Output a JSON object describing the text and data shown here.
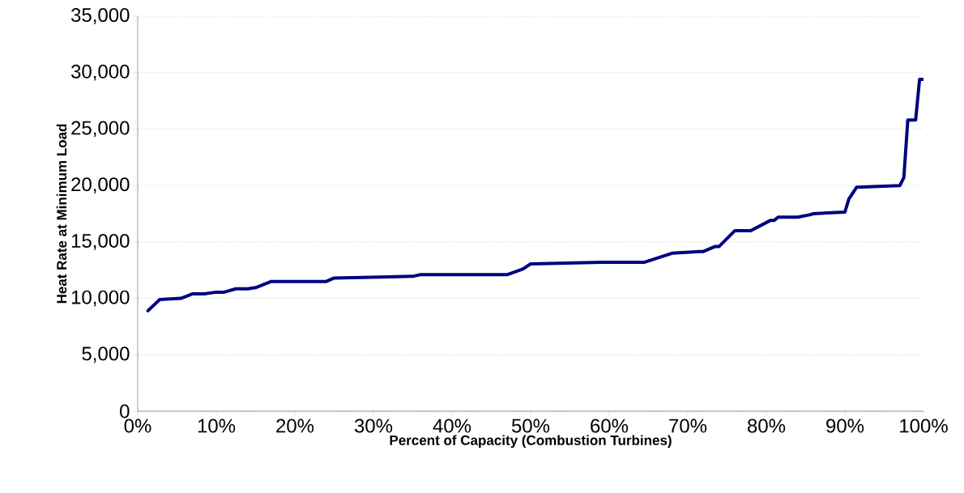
{
  "chart_data": {
    "type": "line",
    "xlabel": "Percent of Capacity (Combustion Turbines)",
    "ylabel": "Heat Rate at Minimum Load",
    "x": [
      1.3,
      2.8,
      5.5,
      7,
      8.5,
      10,
      11,
      12.5,
      14,
      15,
      17,
      24,
      25,
      32,
      35,
      36,
      47,
      49,
      50,
      59,
      64.5,
      68,
      71.5,
      72,
      73.5,
      74,
      76,
      78,
      80.5,
      81,
      81.5,
      84,
      85.5,
      86,
      90,
      90.5,
      91.5,
      97,
      97.5,
      98,
      99,
      99.5,
      100
    ],
    "values": [
      8900,
      9900,
      10000,
      10400,
      10400,
      10550,
      10550,
      10850,
      10850,
      10950,
      11500,
      11500,
      11800,
      11900,
      11950,
      12100,
      12100,
      12600,
      13050,
      13200,
      13200,
      14000,
      14150,
      14150,
      14600,
      14600,
      16000,
      16000,
      16900,
      16900,
      17200,
      17200,
      17400,
      17500,
      17650,
      18800,
      19850,
      20000,
      20700,
      25800,
      25800,
      29400,
      29400
    ],
    "color": "#000080",
    "xlim": [
      0,
      100
    ],
    "ylim": [
      0,
      35000
    ],
    "xticks": [
      {
        "value": 0,
        "label": "0%"
      },
      {
        "value": 10,
        "label": "10%"
      },
      {
        "value": 20,
        "label": "20%"
      },
      {
        "value": 30,
        "label": "30%"
      },
      {
        "value": 40,
        "label": "40%"
      },
      {
        "value": 50,
        "label": "50%"
      },
      {
        "value": 60,
        "label": "60%"
      },
      {
        "value": 70,
        "label": "70%"
      },
      {
        "value": 80,
        "label": "80%"
      },
      {
        "value": 90,
        "label": "90%"
      },
      {
        "value": 100,
        "label": "100%"
      }
    ],
    "yticks": [
      {
        "value": 0,
        "label": "0"
      },
      {
        "value": 5000,
        "label": "5,000"
      },
      {
        "value": 10000,
        "label": "10,000"
      },
      {
        "value": 15000,
        "label": "15,000"
      },
      {
        "value": 20000,
        "label": "20,000"
      },
      {
        "value": 25000,
        "label": "25,000"
      },
      {
        "value": 30000,
        "label": "30,000"
      },
      {
        "value": 35000,
        "label": "35,000"
      }
    ],
    "grid": "y"
  }
}
